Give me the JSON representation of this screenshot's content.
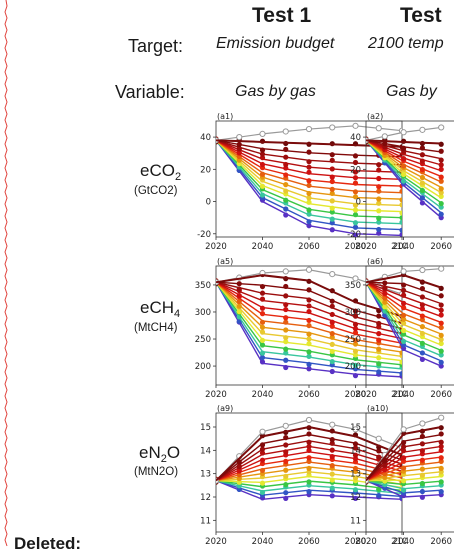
{
  "columns": [
    {
      "title": "Test 1",
      "target": "Emission budget",
      "variable": "Gas by gas"
    },
    {
      "title": "Test",
      "target": "2100 temp",
      "variable": "Gas by"
    }
  ],
  "row_headers": {
    "target_label": "Target:",
    "variable_label": "Variable:"
  },
  "rows": [
    {
      "gas_main": "eCO",
      "gas_sub": "2",
      "unit": "(GtCO2)"
    },
    {
      "gas_main": "eCH",
      "gas_sub": "4",
      "unit": "(MtCH4)"
    },
    {
      "gas_main": "eN",
      "gas_sub": "2",
      "gas_tail": "O",
      "unit": "(MtN2O)"
    }
  ],
  "deleted_label": "Deleted:",
  "colors": {
    "margin_line": "#e0443e",
    "reference": "#999999",
    "dark_red": "#7a0c0c"
  },
  "chart_data": [
    {
      "type": "line",
      "panel": "(a1)",
      "x": [
        2020,
        2040,
        2060,
        2080,
        2100
      ],
      "xlim": [
        2020,
        2100
      ],
      "ylim": [
        -22,
        50
      ],
      "yticks": [
        -20,
        0,
        20,
        40
      ],
      "reference_series": [
        38,
        42,
        45,
        47,
        44
      ],
      "top_series": [
        38,
        37,
        36,
        35,
        34
      ],
      "bottom_series": [
        38,
        0,
        -15,
        -20,
        -21
      ]
    },
    {
      "type": "line",
      "panel": "(a2)",
      "x": [
        2020,
        2040,
        2060
      ],
      "xlim": [
        2020,
        2070
      ],
      "ylim": [
        -22,
        50
      ],
      "yticks": [
        -20,
        0,
        20,
        40
      ],
      "reference_series": [
        38,
        43,
        46
      ],
      "top_series": [
        38,
        37,
        36
      ],
      "bottom_series": [
        38,
        10,
        -10
      ]
    },
    {
      "type": "line",
      "panel": "(a5)",
      "x": [
        2020,
        2040,
        2060,
        2080,
        2100
      ],
      "xlim": [
        2020,
        2100
      ],
      "ylim": [
        165,
        385
      ],
      "yticks": [
        200,
        250,
        300,
        350
      ],
      "reference_series": [
        355,
        372,
        378,
        362,
        333
      ],
      "top_series": [
        355,
        368,
        358,
        318,
        292
      ],
      "bottom_series": [
        355,
        205,
        195,
        185,
        180
      ]
    },
    {
      "type": "line",
      "panel": "(a6)",
      "x": [
        2020,
        2040,
        2060
      ],
      "xlim": [
        2020,
        2070
      ],
      "ylim": [
        165,
        385
      ],
      "yticks": [
        200,
        250,
        300,
        350
      ],
      "reference_series": [
        355,
        375,
        380
      ],
      "top_series": [
        355,
        368,
        345
      ],
      "bottom_series": [
        355,
        230,
        200
      ]
    },
    {
      "type": "line",
      "panel": "(a9)",
      "x": [
        2020,
        2040,
        2060,
        2080,
        2100
      ],
      "xlim": [
        2020,
        2100
      ],
      "ylim": [
        10.5,
        15.6
      ],
      "yticks": [
        11,
        12,
        13,
        14,
        15
      ],
      "reference_series": [
        12.7,
        14.8,
        15.3,
        14.9,
        14.1
      ],
      "top_series": [
        12.7,
        14.6,
        15.0,
        14.6,
        13.8
      ],
      "bottom_series": [
        12.7,
        11.9,
        12.1,
        12.0,
        11.9
      ]
    },
    {
      "type": "line",
      "panel": "(a10)",
      "x": [
        2020,
        2040,
        2060
      ],
      "xlim": [
        2020,
        2070
      ],
      "ylim": [
        10.5,
        15.6
      ],
      "yticks": [
        11,
        12,
        13,
        14,
        15
      ],
      "reference_series": [
        12.7,
        14.9,
        15.4
      ],
      "top_series": [
        12.7,
        14.7,
        15.0
      ],
      "bottom_series": [
        12.7,
        12.0,
        12.1
      ]
    }
  ]
}
